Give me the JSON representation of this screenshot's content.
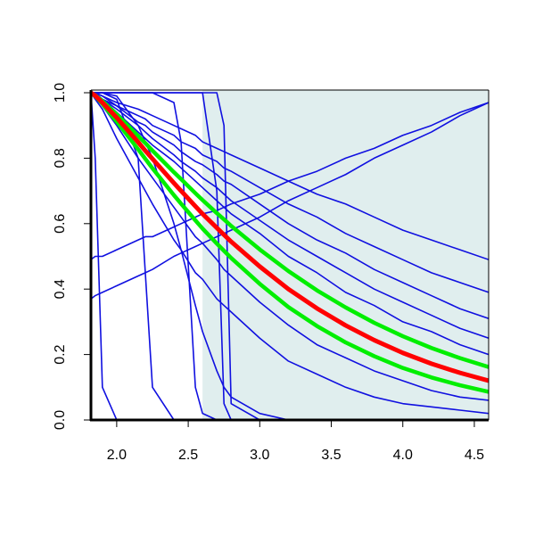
{
  "chart_data": {
    "type": "line",
    "x": [
      1.82,
      1.85,
      1.9,
      2.0,
      2.15,
      2.2,
      2.25,
      2.4,
      2.45,
      2.55,
      2.6,
      2.7,
      2.75,
      2.8,
      3.0,
      3.2,
      3.4,
      3.6,
      3.8,
      4.0,
      4.2,
      4.4,
      4.6
    ],
    "xlim": [
      1.82,
      4.6
    ],
    "ylim": [
      0,
      1
    ],
    "xticks": [
      {
        "value": 2,
        "label": "2.0"
      },
      {
        "value": 2.5,
        "label": "2.5"
      },
      {
        "value": 3,
        "label": "3.0"
      },
      {
        "value": 3.5,
        "label": "3.5"
      },
      {
        "value": 4,
        "label": "4.0"
      },
      {
        "value": 4.5,
        "label": "4.5"
      }
    ],
    "yticks": [
      {
        "value": 0,
        "label": "0.0"
      },
      {
        "value": 0.2,
        "label": "0.2"
      },
      {
        "value": 0.4,
        "label": "0.4"
      },
      {
        "value": 0.6,
        "label": "0.6"
      },
      {
        "value": 0.8,
        "label": "0.8"
      },
      {
        "value": 1,
        "label": "1.0"
      }
    ],
    "shade": {
      "xmin": 2.6,
      "color": "#e0eeee"
    },
    "series": [
      {
        "color": "#1010e0",
        "linewidth": 1.6,
        "values": [
          1,
          1,
          0.99,
          0.97,
          0.95,
          0.94,
          0.93,
          0.9,
          0.89,
          0.87,
          0.85,
          0.83,
          0.82,
          0.81,
          0.77,
          0.73,
          0.69,
          0.66,
          0.62,
          0.58,
          0.55,
          0.52,
          0.49
        ]
      },
      {
        "color": "#1010e0",
        "linewidth": 1.6,
        "values": [
          1,
          1,
          0.99,
          0.96,
          0.93,
          0.92,
          0.9,
          0.87,
          0.85,
          0.83,
          0.81,
          0.79,
          0.77,
          0.76,
          0.71,
          0.66,
          0.62,
          0.57,
          0.53,
          0.49,
          0.45,
          0.42,
          0.39
        ]
      },
      {
        "color": "#1010e0",
        "linewidth": 1.6,
        "values": [
          1,
          1,
          0.98,
          0.96,
          0.91,
          0.9,
          0.88,
          0.84,
          0.82,
          0.79,
          0.78,
          0.75,
          0.73,
          0.72,
          0.66,
          0.6,
          0.55,
          0.51,
          0.46,
          0.42,
          0.38,
          0.34,
          0.31
        ]
      },
      {
        "color": "#1010e0",
        "linewidth": 1.6,
        "values": [
          1,
          0.99,
          0.98,
          0.95,
          0.9,
          0.88,
          0.86,
          0.81,
          0.79,
          0.76,
          0.74,
          0.71,
          0.69,
          0.67,
          0.61,
          0.55,
          0.5,
          0.45,
          0.4,
          0.36,
          0.32,
          0.28,
          0.25
        ]
      },
      {
        "color": "#1010e0",
        "linewidth": 1.6,
        "values": [
          1,
          0.99,
          0.98,
          0.94,
          0.88,
          0.86,
          0.84,
          0.79,
          0.77,
          0.73,
          0.71,
          0.67,
          0.65,
          0.63,
          0.57,
          0.5,
          0.45,
          0.39,
          0.35,
          0.3,
          0.27,
          0.23,
          0.2
        ]
      },
      {
        "color": "#1010e0",
        "linewidth": 1.6,
        "values": [
          1,
          0.99,
          0.96,
          0.9,
          0.8,
          0.77,
          0.74,
          0.65,
          0.62,
          0.56,
          0.54,
          0.49,
          0.46,
          0.44,
          0.36,
          0.29,
          0.23,
          0.19,
          0.15,
          0.12,
          0.09,
          0.07,
          0.06
        ]
      },
      {
        "color": "#1010e0",
        "linewidth": 1.6,
        "values": [
          1,
          0.98,
          0.95,
          0.86,
          0.74,
          0.7,
          0.66,
          0.55,
          0.52,
          0.45,
          0.43,
          0.37,
          0.35,
          0.33,
          0.25,
          0.18,
          0.14,
          0.1,
          0.07,
          0.05,
          0.04,
          0.03,
          0.02
        ]
      },
      {
        "color": "#1010e0",
        "linewidth": 1.6,
        "values": [
          1,
          0.8,
          0.1,
          0,
          0,
          0,
          0,
          0,
          0,
          0,
          0,
          0,
          0,
          0,
          0,
          0,
          0,
          0,
          0,
          0,
          0,
          0,
          0
        ]
      },
      {
        "color": "#1010e0",
        "linewidth": 1.6,
        "values": [
          1,
          1,
          1,
          0.98,
          0.8,
          0.45,
          0.1,
          0,
          0,
          0,
          0,
          0,
          0,
          0,
          0,
          0,
          0,
          0,
          0,
          0,
          0,
          0,
          0
        ]
      },
      {
        "color": "#1010e0",
        "linewidth": 1.6,
        "values": [
          1,
          1,
          1,
          1,
          1,
          1,
          1,
          0.97,
          0.85,
          0.1,
          0.02,
          0,
          0,
          0,
          0,
          0,
          0,
          0,
          0,
          0,
          0,
          0,
          0
        ]
      },
      {
        "color": "#1010e0",
        "linewidth": 1.6,
        "values": [
          1,
          1,
          1,
          1,
          1,
          1,
          1,
          1,
          1,
          1,
          1,
          0.7,
          0.05,
          0,
          0,
          0,
          0,
          0,
          0,
          0,
          0,
          0,
          0
        ]
      },
      {
        "color": "#1010e0",
        "linewidth": 1.6,
        "values": [
          1,
          1,
          1,
          1,
          1,
          1,
          1,
          1,
          1,
          1,
          1,
          1,
          0.9,
          0.05,
          0,
          0,
          0,
          0,
          0,
          0,
          0,
          0,
          0
        ]
      },
      {
        "color": "#1010e0",
        "linewidth": 1.6,
        "values": [
          1,
          1,
          1,
          0.99,
          0.9,
          0.85,
          0.8,
          0.6,
          0.52,
          0.35,
          0.27,
          0.15,
          0.1,
          0.07,
          0.02,
          0,
          0,
          0,
          0,
          0,
          0,
          0,
          0
        ]
      },
      {
        "color": "#1010e0",
        "linewidth": 1.6,
        "values": [
          0.49,
          0.5,
          0.5,
          0.52,
          0.55,
          0.56,
          0.56,
          0.59,
          0.6,
          0.62,
          0.63,
          0.64,
          0.65,
          0.66,
          0.69,
          0.73,
          0.76,
          0.8,
          0.83,
          0.87,
          0.9,
          0.94,
          0.97
        ]
      },
      {
        "color": "#1010e0",
        "linewidth": 1.6,
        "values": [
          0.37,
          0.38,
          0.39,
          0.41,
          0.44,
          0.45,
          0.46,
          0.5,
          0.51,
          0.53,
          0.54,
          0.56,
          0.57,
          0.58,
          0.62,
          0.67,
          0.71,
          0.75,
          0.8,
          0.84,
          0.88,
          0.93,
          0.97
        ]
      },
      {
        "color": "#00ee00",
        "linewidth": 4.5,
        "values": [
          1,
          0.992,
          0.975,
          0.934,
          0.868,
          0.846,
          0.823,
          0.757,
          0.736,
          0.693,
          0.672,
          0.632,
          0.613,
          0.593,
          0.521,
          0.455,
          0.396,
          0.344,
          0.297,
          0.256,
          0.22,
          0.189,
          0.162
        ]
      },
      {
        "color": "#00ee00",
        "linewidth": 4.5,
        "values": [
          1,
          0.99,
          0.966,
          0.912,
          0.827,
          0.798,
          0.769,
          0.687,
          0.661,
          0.61,
          0.585,
          0.539,
          0.517,
          0.495,
          0.416,
          0.345,
          0.287,
          0.237,
          0.195,
          0.159,
          0.13,
          0.106,
          0.086
        ]
      },
      {
        "color": "#ff0000",
        "linewidth": 5,
        "values": [
          1,
          0.991,
          0.97,
          0.924,
          0.849,
          0.823,
          0.798,
          0.724,
          0.7,
          0.653,
          0.63,
          0.587,
          0.566,
          0.545,
          0.469,
          0.4,
          0.341,
          0.289,
          0.244,
          0.205,
          0.172,
          0.144,
          0.12
        ]
      }
    ]
  }
}
